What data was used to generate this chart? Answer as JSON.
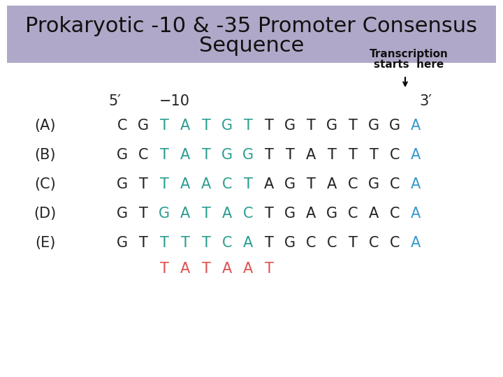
{
  "title": "Prokaryotic -10 & -35 Promoter Consensus Sequence",
  "title_bg": "#b0a8c8",
  "fig_bg": "#ffffff",
  "title_fontsize": 22,
  "transcription_label": "Transcription\nstarts here",
  "arrow_label": "↓",
  "five_prime": "5′",
  "minus10": "−10",
  "three_prime": "3′",
  "row_labels": [
    "(A)",
    "(B)",
    "(C)",
    "(D)",
    "(E)"
  ],
  "consensus_seq": [
    "T",
    "A",
    "T",
    "A",
    "A",
    "T"
  ],
  "consensus_color": "#e05050",
  "sequences": [
    [
      "C",
      "G",
      "T",
      "A",
      "T",
      "G",
      "T",
      "T",
      "G",
      "T",
      "G",
      "T",
      "G",
      "G",
      "A"
    ],
    [
      "G",
      "C",
      "T",
      "A",
      "T",
      "G",
      "G",
      "T",
      "T",
      "A",
      "T",
      "T",
      "T",
      "C",
      "A"
    ],
    [
      "G",
      "T",
      "T",
      "A",
      "A",
      "C",
      "T",
      "A",
      "G",
      "T",
      "A",
      "C",
      "G",
      "C",
      "A"
    ],
    [
      "G",
      "T",
      "G",
      "A",
      "T",
      "A",
      "C",
      "T",
      "G",
      "A",
      "G",
      "C",
      "A",
      "C",
      "A"
    ],
    [
      "G",
      "T",
      "T",
      "T",
      "T",
      "C",
      "A",
      "T",
      "G",
      "C",
      "C",
      "T",
      "C",
      "C",
      "A"
    ]
  ],
  "seq_colors": [
    [
      "#222222",
      "#222222",
      "#2a9d8f",
      "#2a9d8f",
      "#2a9d8f",
      "#2a9d8f",
      "#2a9d8f",
      "#222222",
      "#222222",
      "#222222",
      "#222222",
      "#222222",
      "#222222",
      "#222222",
      "#3399cc"
    ],
    [
      "#222222",
      "#222222",
      "#2a9d8f",
      "#2a9d8f",
      "#2a9d8f",
      "#2a9d8f",
      "#2a9d8f",
      "#222222",
      "#222222",
      "#222222",
      "#222222",
      "#222222",
      "#222222",
      "#222222",
      "#3399cc"
    ],
    [
      "#222222",
      "#222222",
      "#2a9d8f",
      "#2a9d8f",
      "#2a9d8f",
      "#2a9d8f",
      "#2a9d8f",
      "#222222",
      "#222222",
      "#222222",
      "#222222",
      "#222222",
      "#222222",
      "#222222",
      "#3399cc"
    ],
    [
      "#222222",
      "#222222",
      "#2a9d8f",
      "#2a9d8f",
      "#2a9d8f",
      "#2a9d8f",
      "#2a9d8f",
      "#222222",
      "#222222",
      "#222222",
      "#222222",
      "#222222",
      "#222222",
      "#222222",
      "#3399cc"
    ],
    [
      "#222222",
      "#222222",
      "#2a9d8f",
      "#2a9d8f",
      "#2a9d8f",
      "#2a9d8f",
      "#2a9d8f",
      "#222222",
      "#222222",
      "#222222",
      "#222222",
      "#222222",
      "#222222",
      "#222222",
      "#3399cc"
    ]
  ],
  "seq_fontsize": 15,
  "label_fontsize": 15,
  "header_fontsize": 15
}
